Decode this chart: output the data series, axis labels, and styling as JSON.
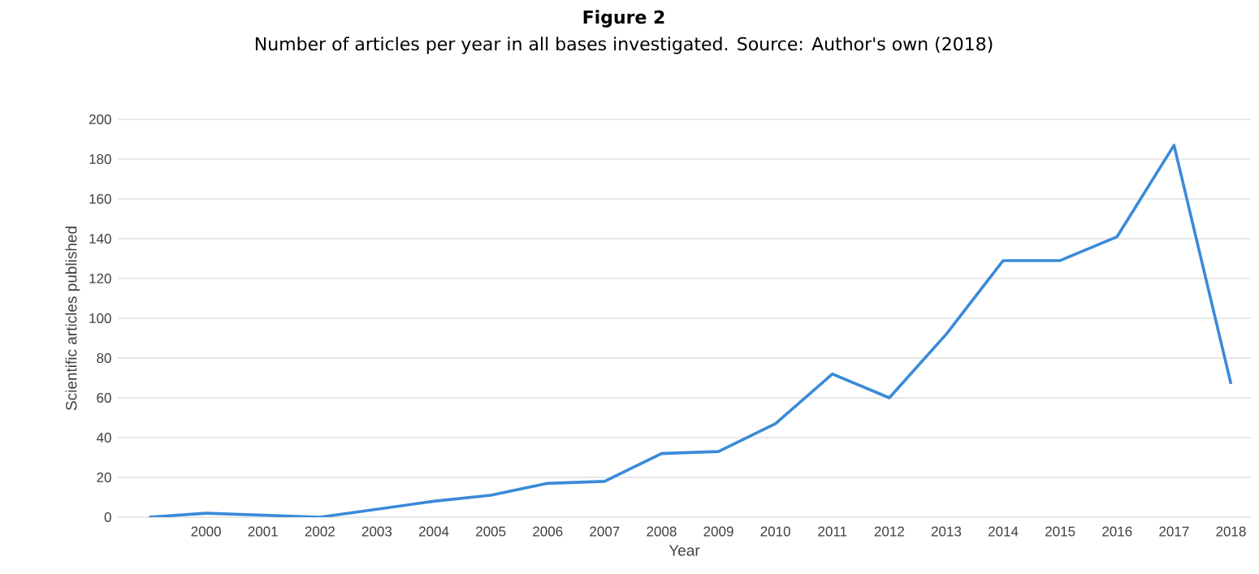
{
  "chart_data": {
    "type": "line",
    "title": "Figure 2",
    "subtitle": "Number of articles per year in all bases investigated. Source: Author's own (2018)",
    "xlabel": "Year",
    "ylabel": "Scientific articles published",
    "categories": [
      null,
      "2000",
      "2001",
      "2002",
      "2003",
      "2004",
      "2005",
      "2006",
      "2007",
      "2008",
      "2009",
      "2010",
      "2011",
      "2012",
      "2013",
      "2014",
      "2015",
      "2016",
      "2017",
      "2018"
    ],
    "series": [
      {
        "color": "#3a8ad8",
        "values": [
          0,
          2,
          1,
          0,
          4,
          8,
          11,
          17,
          18,
          32,
          33,
          47,
          72,
          60,
          92,
          129,
          129,
          141,
          187,
          67
        ]
      }
    ],
    "ylim": [
      0,
      200
    ],
    "yticks": [
      0,
      20,
      40,
      60,
      80,
      100,
      120,
      140,
      160,
      180,
      200
    ],
    "grid": "y",
    "marker": "none",
    "line_style": "solid"
  }
}
